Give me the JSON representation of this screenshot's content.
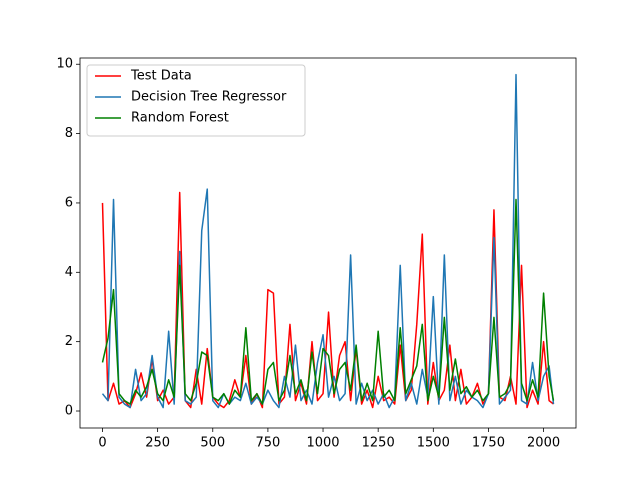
{
  "chart_data": {
    "type": "line",
    "x": [
      0,
      25,
      50,
      75,
      100,
      125,
      150,
      175,
      200,
      225,
      250,
      275,
      300,
      325,
      350,
      375,
      400,
      425,
      450,
      475,
      500,
      525,
      550,
      575,
      600,
      625,
      650,
      675,
      700,
      725,
      750,
      775,
      800,
      825,
      850,
      875,
      900,
      925,
      950,
      975,
      1000,
      1025,
      1050,
      1075,
      1100,
      1125,
      1150,
      1175,
      1200,
      1225,
      1250,
      1275,
      1300,
      1325,
      1350,
      1375,
      1400,
      1425,
      1450,
      1475,
      1500,
      1525,
      1550,
      1575,
      1600,
      1625,
      1650,
      1675,
      1700,
      1725,
      1750,
      1775,
      1800,
      1825,
      1850,
      1875,
      1900,
      1925,
      1950,
      1975,
      2000,
      2025,
      2045
    ],
    "series": [
      {
        "name": "Test Data",
        "color": "#ff0000",
        "values": [
          6.0,
          0.3,
          0.8,
          0.2,
          0.3,
          0.1,
          0.5,
          1.1,
          0.4,
          1.5,
          0.3,
          0.6,
          0.2,
          0.4,
          6.3,
          0.3,
          0.1,
          1.2,
          0.2,
          1.8,
          0.4,
          0.2,
          0.1,
          0.3,
          0.9,
          0.4,
          1.6,
          0.2,
          0.5,
          0.1,
          3.5,
          3.4,
          0.2,
          0.4,
          2.5,
          0.3,
          0.8,
          0.2,
          2.0,
          0.3,
          0.5,
          2.85,
          0.4,
          1.6,
          2.0,
          0.3,
          1.8,
          0.2,
          0.6,
          0.1,
          1.0,
          0.3,
          0.4,
          0.2,
          1.9,
          0.3,
          0.6,
          2.5,
          5.1,
          0.2,
          1.4,
          0.3,
          0.6,
          1.9,
          0.3,
          1.2,
          0.2,
          0.4,
          0.8,
          0.2,
          0.5,
          5.8,
          0.4,
          0.3,
          1.0,
          0.2,
          4.2,
          0.1,
          0.6,
          0.2,
          2.0,
          0.3,
          0.2
        ]
      },
      {
        "name": "Decision Tree Regressor",
        "color": "#1f77b4",
        "values": [
          0.5,
          0.3,
          6.1,
          0.4,
          0.2,
          0.1,
          1.2,
          0.3,
          0.5,
          1.6,
          0.4,
          0.1,
          2.3,
          0.2,
          4.6,
          0.3,
          0.2,
          0.4,
          5.2,
          6.4,
          0.3,
          0.1,
          0.5,
          0.2,
          0.4,
          0.3,
          0.8,
          0.2,
          0.4,
          0.2,
          0.6,
          0.3,
          0.1,
          1.0,
          0.4,
          1.9,
          0.3,
          0.6,
          0.2,
          1.4,
          2.2,
          0.4,
          1.0,
          0.3,
          0.5,
          4.5,
          0.2,
          0.8,
          0.3,
          0.6,
          0.2,
          0.5,
          0.1,
          0.4,
          4.2,
          0.3,
          0.8,
          0.2,
          1.2,
          0.4,
          3.3,
          0.2,
          4.5,
          0.3,
          1.0,
          0.2,
          0.6,
          0.4,
          0.3,
          0.1,
          0.5,
          5.0,
          0.2,
          0.4,
          0.6,
          9.7,
          0.3,
          0.2,
          1.4,
          0.3,
          1.0,
          1.3,
          0.2
        ]
      },
      {
        "name": "Random Forest",
        "color": "#008000",
        "values": [
          1.4,
          2.1,
          3.5,
          0.5,
          0.3,
          0.2,
          0.6,
          0.4,
          0.7,
          1.2,
          0.5,
          0.3,
          0.9,
          0.4,
          4.2,
          0.5,
          0.3,
          0.8,
          1.7,
          1.6,
          0.4,
          0.3,
          0.5,
          0.2,
          0.6,
          0.4,
          2.4,
          0.3,
          0.5,
          0.2,
          1.2,
          1.4,
          0.3,
          0.6,
          1.6,
          0.5,
          0.9,
          0.3,
          1.7,
          0.5,
          1.8,
          1.6,
          0.5,
          1.2,
          1.4,
          0.6,
          1.9,
          0.3,
          0.8,
          0.3,
          2.3,
          0.4,
          0.6,
          0.3,
          2.4,
          0.5,
          0.9,
          1.3,
          2.5,
          0.3,
          1.0,
          0.4,
          2.7,
          0.6,
          1.5,
          0.5,
          0.7,
          0.4,
          0.6,
          0.3,
          0.5,
          2.7,
          0.4,
          0.5,
          0.8,
          6.1,
          0.8,
          0.3,
          0.9,
          0.4,
          3.4,
          1.0,
          0.3
        ]
      }
    ],
    "xlim": [
      -102,
      2147
    ],
    "ylim": [
      -0.49,
      10.18
    ],
    "xticks": [
      0,
      250,
      500,
      750,
      1000,
      1250,
      1500,
      1750,
      2000
    ],
    "yticks": [
      0,
      2,
      4,
      6,
      8,
      10
    ],
    "legend": "upper left"
  }
}
